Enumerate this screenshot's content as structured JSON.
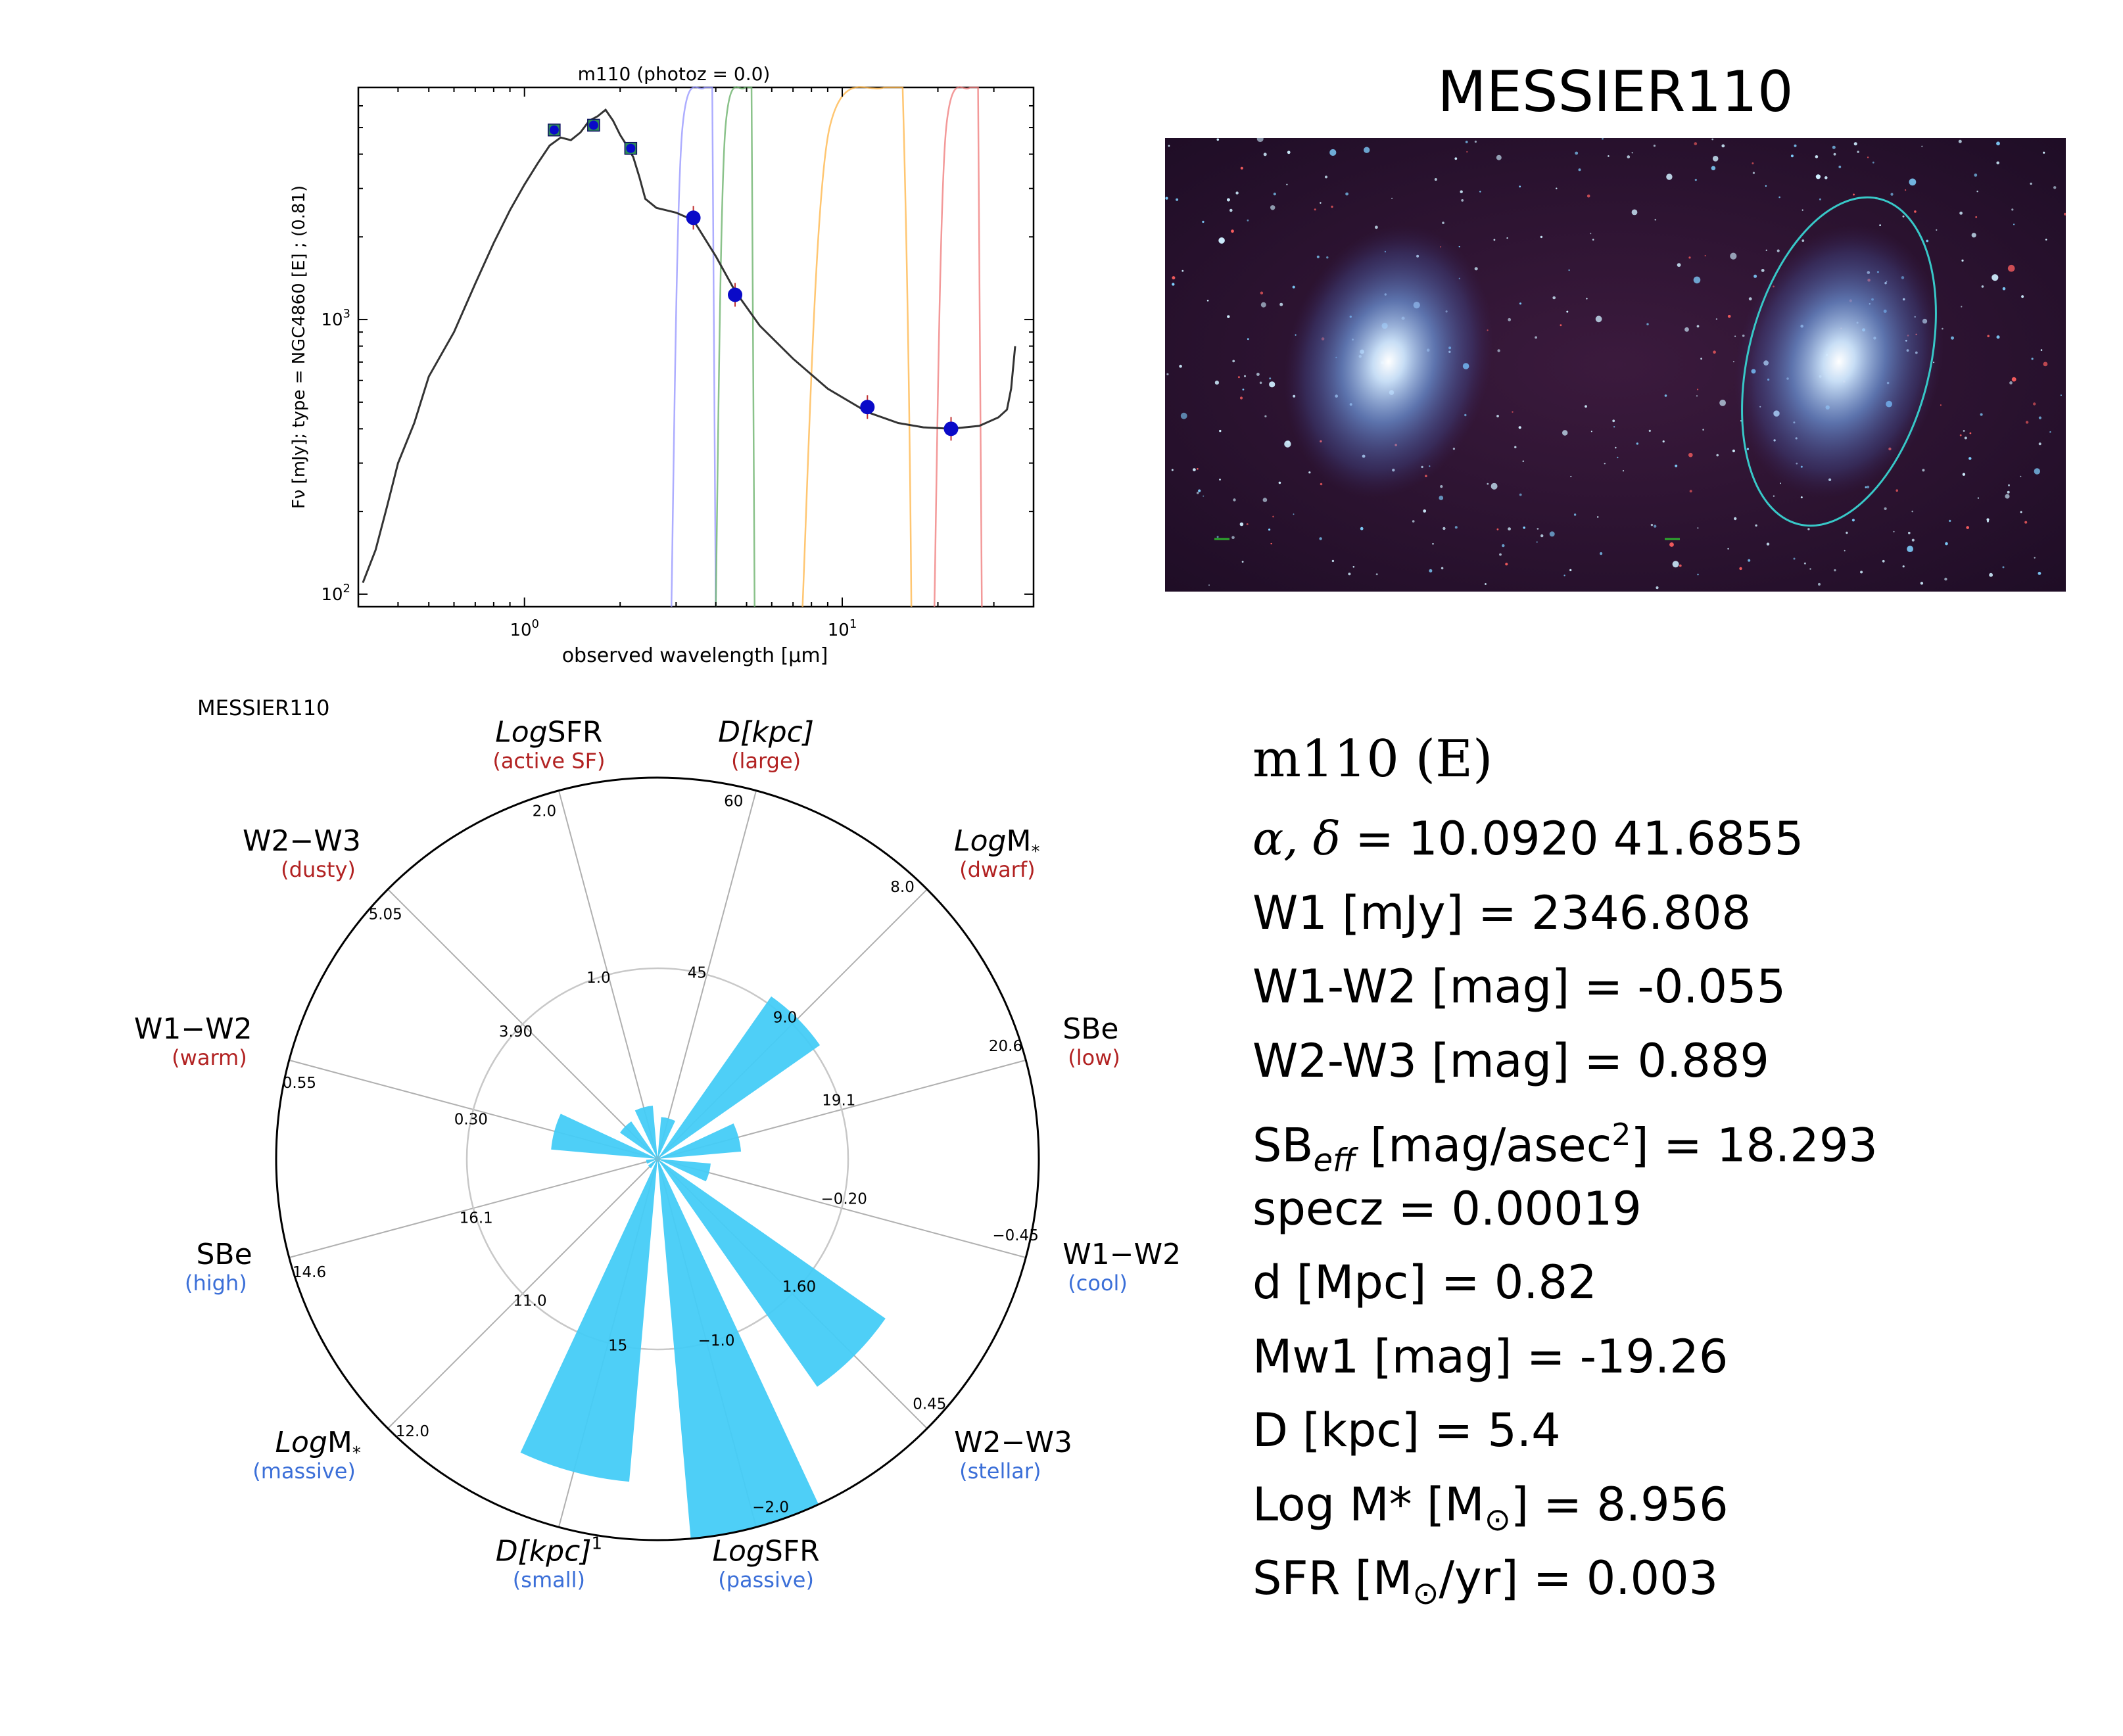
{
  "sed": {
    "title": "m110 (photoz = 0.0)",
    "ylabel": "Fν [mJy];  type = NGC4860 [E] ; (0.81)",
    "xlabel": "observed wavelength [μm]",
    "xticks": [
      {
        "base": "10",
        "exp": "0",
        "value": 1
      },
      {
        "base": "10",
        "exp": "1",
        "value": 10
      }
    ],
    "yticks": [
      {
        "base": "10",
        "exp": "3",
        "value": 1000
      },
      {
        "base": "10",
        "exp": "2",
        "value": 100
      }
    ]
  },
  "chart_data": [
    {
      "type": "scatter",
      "title": "m110 (photoz = 0.0)",
      "xlabel": "observed wavelength [μm]",
      "ylabel": "Fν [mJy];  type = NGC4860 [E] ; (0.81)",
      "xscale": "log",
      "yscale": "log",
      "xlim": [
        0.3,
        40
      ],
      "ylim": [
        90,
        7000
      ],
      "series": [
        {
          "values": [
            [
              1.24,
              4900
            ],
            [
              1.65,
              5100
            ],
            [
              2.16,
              4200
            ]
          ]
        },
        {
          "values": [
            [
              3.4,
              2347
            ],
            [
              4.6,
              1230
            ],
            [
              12,
              480
            ],
            [
              22,
              400
            ]
          ]
        }
      ],
      "model_curve": [
        [
          0.31,
          110
        ],
        [
          0.34,
          145
        ],
        [
          0.37,
          210
        ],
        [
          0.4,
          300
        ],
        [
          0.45,
          420
        ],
        [
          0.5,
          620
        ],
        [
          0.6,
          900
        ],
        [
          0.7,
          1350
        ],
        [
          0.8,
          1900
        ],
        [
          0.9,
          2500
        ],
        [
          1.0,
          3100
        ],
        [
          1.1,
          3700
        ],
        [
          1.2,
          4300
        ],
        [
          1.3,
          4600
        ],
        [
          1.4,
          4500
        ],
        [
          1.5,
          4800
        ],
        [
          1.6,
          5300
        ],
        [
          1.7,
          5500
        ],
        [
          1.8,
          5800
        ],
        [
          1.9,
          5300
        ],
        [
          2.0,
          4700
        ],
        [
          2.1,
          4300
        ],
        [
          2.2,
          3900
        ],
        [
          2.3,
          3300
        ],
        [
          2.4,
          2750
        ],
        [
          2.6,
          2550
        ],
        [
          3.0,
          2450
        ],
        [
          3.4,
          2300
        ],
        [
          4.0,
          1700
        ],
        [
          4.6,
          1270
        ],
        [
          5.5,
          950
        ],
        [
          7,
          720
        ],
        [
          9,
          560
        ],
        [
          12,
          460
        ],
        [
          15,
          420
        ],
        [
          18,
          405
        ],
        [
          22,
          400
        ],
        [
          27,
          410
        ],
        [
          31,
          440
        ],
        [
          33,
          470
        ],
        [
          34,
          560
        ],
        [
          35,
          800
        ]
      ],
      "filter_curves": [
        "W1",
        "W2",
        "W3",
        "W4"
      ]
    },
    {
      "type": "bar",
      "title": "MESSIER110",
      "axes": [
        {
          "label": "W1−W2",
          "note": "(warm)",
          "ticks": [
            "0.30",
            "0.55"
          ],
          "value": 0.28
        },
        {
          "label": "W2−W3",
          "note": "(dusty)",
          "ticks": [
            "3.90",
            "5.05"
          ],
          "value": 0.12
        },
        {
          "label": "LogSFR",
          "note": "(active SF)",
          "ticks": [
            "1.0",
            "2.0"
          ],
          "value": 0.14
        },
        {
          "label": "D[kpc]",
          "note": "(large)",
          "ticks": [
            "45",
            "60"
          ],
          "value": 0.11
        },
        {
          "label": "LogM*",
          "note": "(dwarf)",
          "ticks": [
            "9.0",
            "8.0"
          ],
          "value": 0.52
        },
        {
          "label": "SBe",
          "note": "(low)",
          "ticks": [
            "19.1",
            "20.6"
          ],
          "value": 0.22
        },
        {
          "label": "W1−W2",
          "note": "(cool)",
          "ticks": [
            "−0.20",
            "−0.45"
          ],
          "value": 0.14
        },
        {
          "label": "W2−W3",
          "note": "(stellar)",
          "ticks": [
            "1.60",
            "0.45"
          ],
          "value": 0.73
        },
        {
          "label": "LogSFR",
          "note": "(passive)",
          "ticks": [
            "−1.0",
            "−2.0"
          ],
          "value": 1.0
        },
        {
          "label": "D[kpc]",
          "note": "(small)",
          "ticks": [
            "15",
            ""
          ],
          "value": 0.85
        },
        {
          "label": "LogM*",
          "note": "(massive)",
          "ticks": [
            "11.0",
            "12.0"
          ],
          "value": 0.03
        },
        {
          "label": "SBe",
          "note": "(high)",
          "ticks": [
            "16.1",
            "14.6"
          ],
          "value": 0.03
        }
      ]
    }
  ],
  "radar": {
    "name": "MESSIER110",
    "labels": [
      {
        "pre": "W1−W2",
        "it": "",
        "post": "",
        "sub": "",
        "note": "(warm)"
      },
      {
        "pre": "W2−W3",
        "it": "",
        "post": "",
        "sub": "",
        "note": "(dusty)"
      },
      {
        "pre": "",
        "it": "Log",
        "post": "SFR",
        "sub": "",
        "note": "(active SF)"
      },
      {
        "pre": "",
        "it": "D[kpc]",
        "post": "",
        "sub": "",
        "note": "(large)"
      },
      {
        "pre": "",
        "it": "Log",
        "post": "M",
        "sub": "*",
        "note": "(dwarf)"
      },
      {
        "pre": "SBe",
        "it": "",
        "post": "",
        "sub": "",
        "note": "(low)"
      },
      {
        "pre": "W1−W2",
        "it": "",
        "post": "",
        "sub": "",
        "note": "(cool)"
      },
      {
        "pre": "W2−W3",
        "it": "",
        "post": "",
        "sub": "",
        "note": "(stellar)"
      },
      {
        "pre": "",
        "it": "Log",
        "post": "SFR",
        "sub": "",
        "note": "(passive)"
      },
      {
        "pre": "",
        "it": "D[kpc]",
        "post": "",
        "sub": "1",
        "note": "(small)"
      },
      {
        "pre": "",
        "it": "Log",
        "post": "M",
        "sub": "*",
        "note": "(massive)"
      },
      {
        "pre": "SBe",
        "it": "",
        "post": "",
        "sub": "",
        "note": "(high)"
      }
    ]
  },
  "image_panel": {
    "title": "MESSIER110"
  },
  "info": {
    "head": "m110  (E)",
    "coords": "= 10.0920 41.6855",
    "w1": "W1 [mJy] = 2346.808",
    "w1w2": "W1-W2 [mag] = -0.055",
    "w2w3": "W2-W3 [mag] = 0.889",
    "sb_pre": "SB",
    "sb_sub": "eff",
    "sb_mid": " [mag/asec",
    "sb_sup": "2",
    "sb_post": "] = 18.293",
    "specz": "specz = 0.00019",
    "dist": "d [Mpc] = 0.82",
    "mw1": "Mw1 [mag] = -19.26",
    "dkpc": "D [kpc] = 5.4",
    "logm": "Log M* [M",
    "logm_post": "] = 8.956",
    "sfr": "SFR [M",
    "sfr_post": "/yr] = 0.003"
  },
  "colors": {
    "radar_bar": "#44ccf7",
    "label_warm": "#b22222",
    "label_cool": "#3b6fd8",
    "sed_points": "#0a0ac8",
    "filter_w1": "#9999ff",
    "filter_w2": "#6db36d",
    "filter_w3": "#ffb84d",
    "filter_w4": "#f08080",
    "ellipse": "#38c8c8"
  }
}
